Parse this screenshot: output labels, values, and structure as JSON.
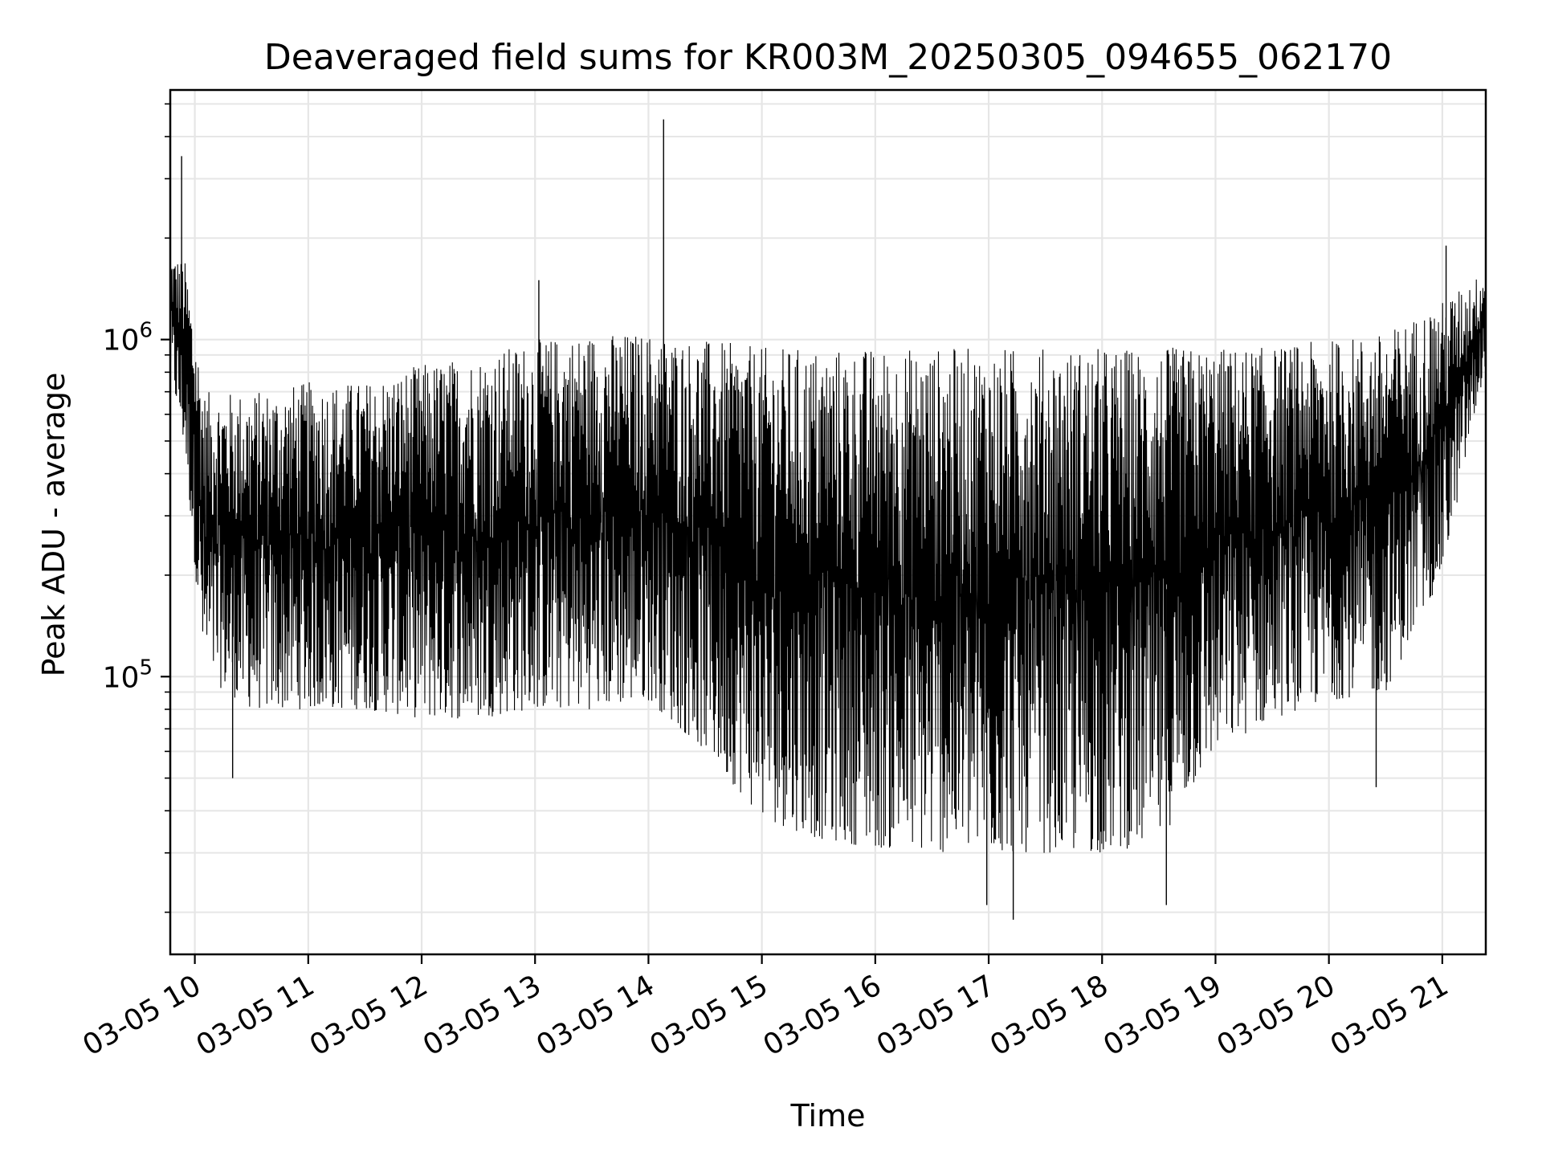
{
  "chart_data": {
    "type": "line",
    "title": "Deaveraged field sums for KR003M_20250305_094655_062170",
    "xlabel": "Time",
    "ylabel": "Peak ADU - average",
    "x_range": [
      "2025-03-05T09:47",
      "2025-03-05T21:23"
    ],
    "y_scale": "log",
    "ylim": [
      15000,
      5500000
    ],
    "grid": true,
    "grid_minor": true,
    "legend": "none",
    "line_color": "#000000",
    "grid_color": "#e6e6e6",
    "x_ticks": [
      {
        "t": "2025-03-05T10:00",
        "label": "03-05 10"
      },
      {
        "t": "2025-03-05T11:00",
        "label": "03-05 11"
      },
      {
        "t": "2025-03-05T12:00",
        "label": "03-05 12"
      },
      {
        "t": "2025-03-05T13:00",
        "label": "03-05 13"
      },
      {
        "t": "2025-03-05T14:00",
        "label": "03-05 14"
      },
      {
        "t": "2025-03-05T15:00",
        "label": "03-05 15"
      },
      {
        "t": "2025-03-05T16:00",
        "label": "03-05 16"
      },
      {
        "t": "2025-03-05T17:00",
        "label": "03-05 17"
      },
      {
        "t": "2025-03-05T18:00",
        "label": "03-05 18"
      },
      {
        "t": "2025-03-05T19:00",
        "label": "03-05 19"
      },
      {
        "t": "2025-03-05T20:00",
        "label": "03-05 20"
      },
      {
        "t": "2025-03-05T21:00",
        "label": "03-05 21"
      }
    ],
    "y_ticks": [
      {
        "value": 100000,
        "base": "10",
        "exp": "5"
      },
      {
        "value": 1000000,
        "base": "10",
        "exp": "6"
      }
    ],
    "series": [
      {
        "envelope": {
          "time": [
            "2025-03-05T09:47",
            "2025-03-05T09:55",
            "2025-03-05T10:05",
            "2025-03-05T10:30",
            "2025-03-05T11:00",
            "2025-03-05T11:30",
            "2025-03-05T12:00",
            "2025-03-05T12:30",
            "2025-03-05T13:00",
            "2025-03-05T13:30",
            "2025-03-05T14:00",
            "2025-03-05T14:30",
            "2025-03-05T15:00",
            "2025-03-05T15:30",
            "2025-03-05T16:00",
            "2025-03-05T16:30",
            "2025-03-05T17:00",
            "2025-03-05T17:30",
            "2025-03-05T18:00",
            "2025-03-05T18:30",
            "2025-03-05T19:00",
            "2025-03-05T19:30",
            "2025-03-05T20:00",
            "2025-03-05T20:30",
            "2025-03-05T21:00",
            "2025-03-05T21:23"
          ],
          "low": [
            800000,
            450000,
            100000,
            80000,
            80000,
            80000,
            75000,
            75000,
            80000,
            80000,
            85000,
            60000,
            38000,
            33000,
            31000,
            30000,
            30000,
            30000,
            30000,
            32000,
            60000,
            75000,
            85000,
            90000,
            200000,
            850000
          ],
          "high": [
            1800000,
            1700000,
            700000,
            700000,
            750000,
            750000,
            850000,
            900000,
            1000000,
            1050000,
            1050000,
            1000000,
            950000,
            950000,
            950000,
            950000,
            950000,
            950000,
            950000,
            950000,
            950000,
            950000,
            1000000,
            1050000,
            1300000,
            1600000
          ]
        },
        "spikes": [
          {
            "time": "2025-03-05T09:53",
            "value": 3500000
          },
          {
            "time": "2025-03-05T14:08",
            "value": 4500000
          },
          {
            "time": "2025-03-05T13:02",
            "value": 1500000
          },
          {
            "time": "2025-03-05T21:02",
            "value": 1900000
          },
          {
            "time": "2025-03-05T17:13",
            "value": 19000
          },
          {
            "time": "2025-03-05T18:34",
            "value": 21000
          },
          {
            "time": "2025-03-05T16:59",
            "value": 21000
          },
          {
            "time": "2025-03-05T10:20",
            "value": 50000
          },
          {
            "time": "2025-03-05T20:25",
            "value": 47000
          }
        ]
      }
    ]
  }
}
